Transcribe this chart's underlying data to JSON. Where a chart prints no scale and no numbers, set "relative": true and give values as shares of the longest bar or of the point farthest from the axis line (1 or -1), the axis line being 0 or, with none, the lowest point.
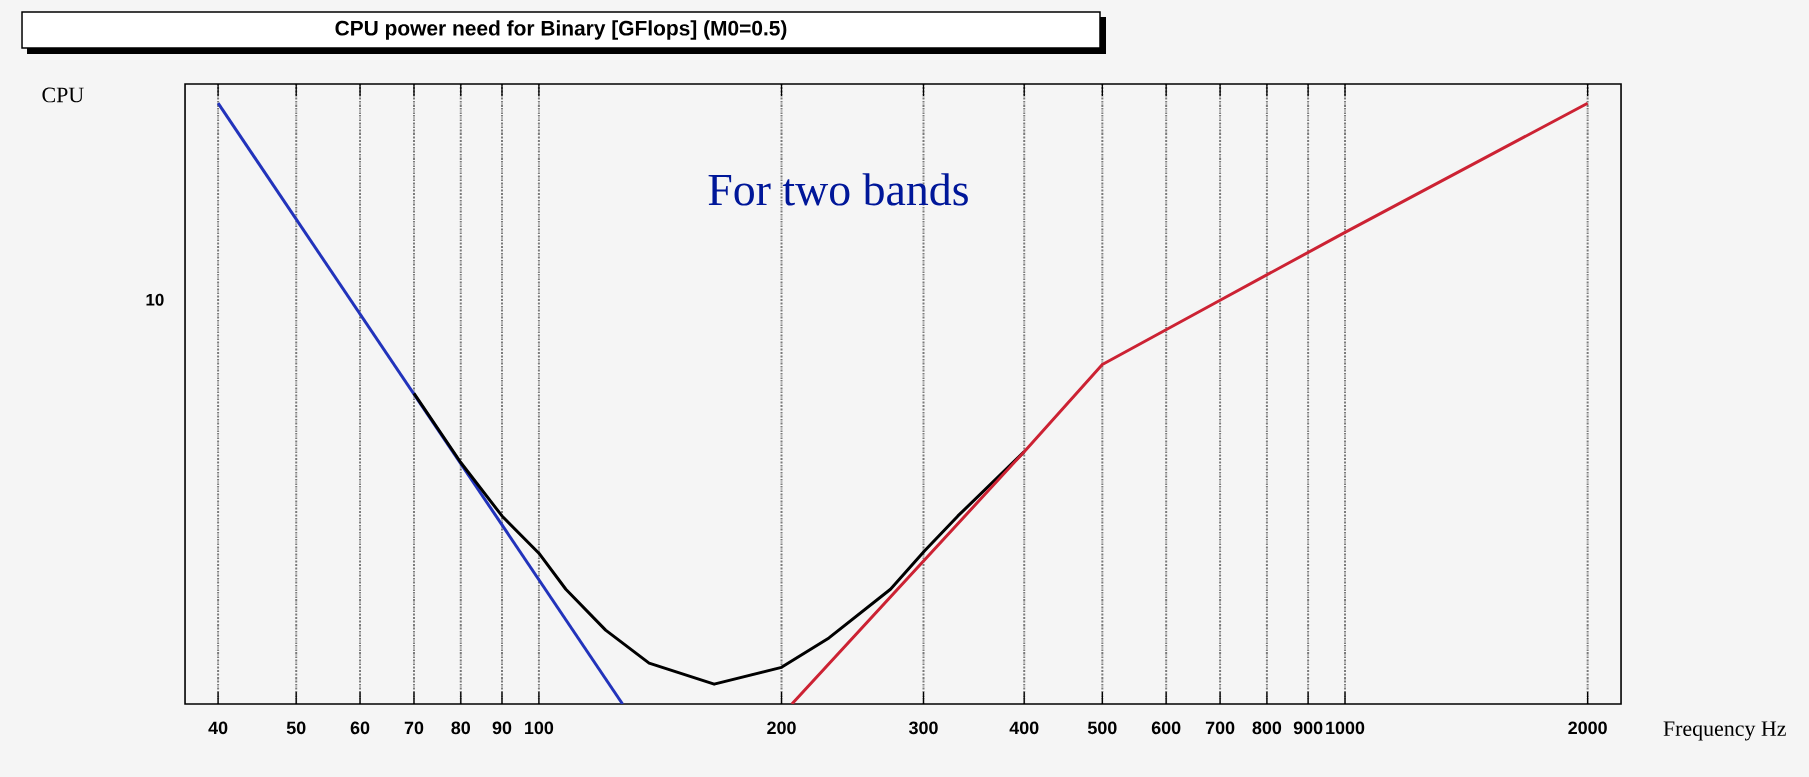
{
  "chart_data": {
    "type": "line",
    "title": "CPU power need for Binary [GFlops] (M0=0.5)",
    "xlabel": "Frequency Hz",
    "ylabel": "CPU",
    "relative": true,
    "log": "x",
    "grid": "x",
    "marker": "none",
    "line_style": "solid",
    "xlim": [
      36.4,
      2200
    ],
    "xticks": [
      40,
      50,
      60,
      70,
      80,
      90,
      100,
      200,
      300,
      400,
      500,
      600,
      700,
      800,
      900,
      1000,
      2000
    ],
    "annotations": [
      "For two bands",
      "10"
    ],
    "series": [
      {
        "color": "#2233bb",
        "x": [
          40,
          127
        ],
        "values": [
          1,
          0
        ]
      },
      {
        "color": "#000000",
        "x": [
          70,
          80,
          90,
          100,
          108,
          121,
          137,
          165,
          200,
          229,
          273,
          301,
          331,
          400
        ],
        "values": [
          0.517,
          0.402,
          0.313,
          0.251,
          0.191,
          0.123,
          0.068,
          0.033,
          0.061,
          0.11,
          0.191,
          0.255,
          0.313,
          0.42
        ]
      },
      {
        "color": "#cc2233",
        "x": [
          206,
          400,
          500,
          700,
          1000,
          2000
        ],
        "values": [
          0,
          0.42,
          0.565,
          0.672,
          0.785,
          1
        ]
      }
    ]
  }
}
